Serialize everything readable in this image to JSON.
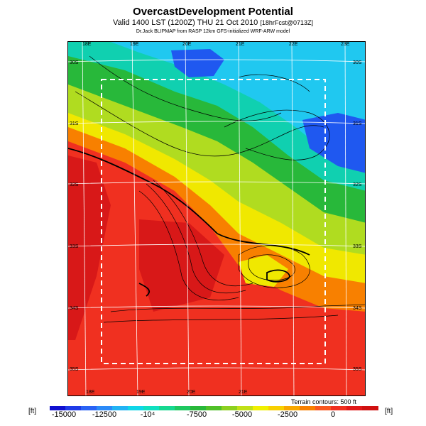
{
  "header": {
    "title": "OvercastDevelopment Potential",
    "subtitle": "Valid 1400 LST (1200Z) THU 21 Oct 2010",
    "subtitle_note": "[18hrFcst@0713Z]",
    "credit": "Dr.Jack BLIPMAP from RASP 12km GFS-initialized WRF-ARW model"
  },
  "map": {
    "lon_top": [
      "18E",
      "19E",
      "20E",
      "21E",
      "22E",
      "23E"
    ],
    "lon_bottom": [
      "18E",
      "19E",
      "20E",
      "21E"
    ],
    "lat_left": [
      "30S",
      "31S",
      "32S",
      "33S",
      "34S",
      "35S"
    ],
    "lat_right": [
      "30S",
      "31S",
      "32S",
      "33S",
      "34S",
      "35S"
    ],
    "terrain_note": "Terrain contours: 500 ft"
  },
  "legend": {
    "unit_left": "[ft]",
    "unit_right": "[ft]",
    "ticks": [
      "-15000",
      "-12500",
      "-10⁴",
      "-7500",
      "-5000",
      "-2500",
      "0"
    ],
    "colors": [
      "#1010d0",
      "#1f3be8",
      "#2a63f5",
      "#2b8af8",
      "#22b3f4",
      "#10d6e8",
      "#10e0c0",
      "#16d890",
      "#1ec860",
      "#28b83a",
      "#50c028",
      "#8cd020",
      "#c0e018",
      "#f0f000",
      "#f8d000",
      "#f8a800",
      "#f88000",
      "#f85820",
      "#f03020",
      "#e01818",
      "#d01010"
    ]
  },
  "colors": {
    "warm": "#f03020",
    "hot": "#d81818",
    "orange": "#f88000",
    "yellow": "#f0e800",
    "lime": "#b0dc20",
    "green": "#28b83a",
    "teal": "#10d0b0",
    "cyan": "#20c8f0",
    "blue": "#1f58f0",
    "deepblue": "#1030e0"
  }
}
